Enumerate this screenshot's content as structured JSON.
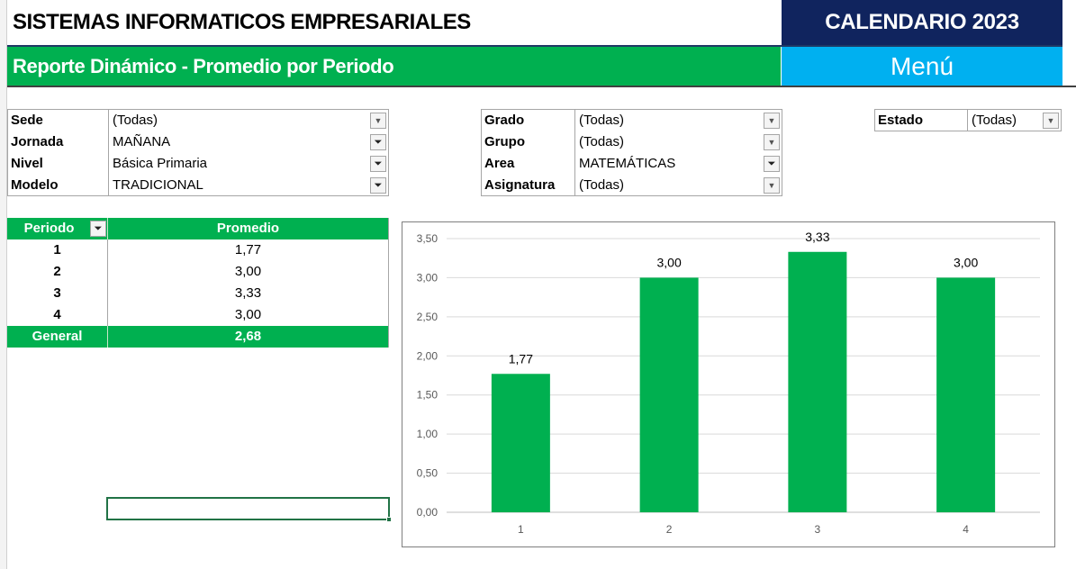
{
  "header": {
    "title": "SISTEMAS INFORMATICOS EMPRESARIALES",
    "calendar": "CALENDARIO 2023",
    "report": "Reporte Dinámico - Promedio por Periodo",
    "menu": "Menú",
    "colors": {
      "navy": "#10245e",
      "green": "#00b050",
      "menu_blue": "#00b0f0"
    }
  },
  "filters_left": [
    {
      "label": "Sede",
      "value": "(Todas)",
      "filtered": false
    },
    {
      "label": "Jornada",
      "value": "MAÑANA",
      "filtered": true
    },
    {
      "label": "Nivel",
      "value": "Básica Primaria",
      "filtered": true
    },
    {
      "label": "Modelo",
      "value": "TRADICIONAL",
      "filtered": true
    }
  ],
  "filters_mid": [
    {
      "label": "Grado",
      "value": "(Todas)",
      "filtered": false
    },
    {
      "label": "Grupo",
      "value": "(Todas)",
      "filtered": false
    },
    {
      "label": "Area",
      "value": "MATEMÁTICAS",
      "filtered": true
    },
    {
      "label": "Asignatura",
      "value": "(Todas)",
      "filtered": false
    }
  ],
  "filters_right": [
    {
      "label": "Estado",
      "value": "(Todas)",
      "filtered": false
    }
  ],
  "pivot": {
    "col1": "Periodo",
    "col2": "Promedio",
    "rows": [
      {
        "periodo": "1",
        "promedio": "1,77"
      },
      {
        "periodo": "2",
        "promedio": "3,00"
      },
      {
        "periodo": "3",
        "promedio": "3,33"
      },
      {
        "periodo": "4",
        "promedio": "3,00"
      }
    ],
    "total_label": "General",
    "total_value": "2,68"
  },
  "chart_data": {
    "type": "bar",
    "categories": [
      "1",
      "2",
      "3",
      "4"
    ],
    "values": [
      1.77,
      3.0,
      3.33,
      3.0
    ],
    "data_labels": [
      "1,77",
      "3,00",
      "3,33",
      "3,00"
    ],
    "yticks": [
      "0,00",
      "0,50",
      "1,00",
      "1,50",
      "2,00",
      "2,50",
      "3,00",
      "3,50"
    ],
    "ylim": [
      0,
      3.5
    ],
    "grid": true,
    "bar_color": "#00b050"
  }
}
